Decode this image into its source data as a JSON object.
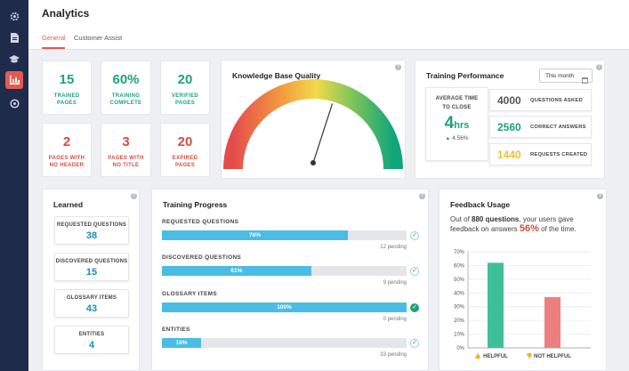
{
  "app": {
    "title": "Analytics"
  },
  "tabs": [
    {
      "label": "General"
    },
    {
      "label": "Customer Assist"
    }
  ],
  "colors": {
    "accent": "#e8594d",
    "green": "#1fa17c",
    "red": "#d64c40",
    "blue_bar": "#4bbde4",
    "sidebar": "#1f2b4a"
  },
  "sidebar": {
    "icons": [
      "settings-icon",
      "document-icon",
      "graduation-cap-icon",
      "analytics-icon",
      "chat-bubble-icon"
    ]
  },
  "stats": [
    {
      "value": "15",
      "label": "TRAINED PAGES"
    },
    {
      "value": "60%",
      "label": "TRAINING COMPLETE"
    },
    {
      "value": "20",
      "label": "VERIFIED PAGES"
    },
    {
      "value": "2",
      "label": "PAGES WITH NO HEADER"
    },
    {
      "value": "3",
      "label": "PAGES WITH NO TITLE"
    },
    {
      "value": "20",
      "label": "EXPIRED PAGES"
    }
  ],
  "kb_quality": {
    "title": "Knowledge Base Quality",
    "gauge_level": 0.6
  },
  "training_performance": {
    "title": "Training Performance",
    "period": "This month",
    "avg_time_label": "AVERAGE TIME TO CLOSE",
    "avg_time_value": "4",
    "avg_time_unit": "hrs",
    "avg_time_change": "4.56%",
    "metrics": [
      {
        "value": "4000",
        "label": "QUESTIONS ASKED",
        "color": "#555555"
      },
      {
        "value": "2560",
        "label": "CORRECT ANSWERS",
        "color": "#1fa17c"
      },
      {
        "value": "1440",
        "label": "REQUESTS CREATED",
        "color": "#e8c22d"
      }
    ]
  },
  "learned": {
    "title": "Learned",
    "items": [
      {
        "label": "REQUESTED QUESTIONS",
        "value": "38"
      },
      {
        "label": "DISCOVERED QUESTIONS",
        "value": "15"
      },
      {
        "label": "GLOSSARY ITEMS",
        "value": "43"
      },
      {
        "label": "ENTITIES",
        "value": "4"
      }
    ]
  },
  "training_progress": {
    "title": "Training Progress",
    "rows": [
      {
        "label": "REQUESTED QUESTIONS",
        "percent": 76,
        "percent_text": "76%",
        "pending": "12 pending"
      },
      {
        "label": "DISCOVERED QUESTIONS",
        "percent": 61,
        "percent_text": "61%",
        "pending": "9 pending"
      },
      {
        "label": "GLOSSARY ITEMS",
        "percent": 100,
        "percent_text": "100%",
        "pending": "0 pending"
      },
      {
        "label": "ENTITIES",
        "percent": 16,
        "percent_text": "16%",
        "pending": "33 pending"
      }
    ]
  },
  "feedback": {
    "title": "Feedback Usage",
    "text_1": "Out of ",
    "questions": "880 questions",
    "text_2": ", your users gave feedback on answers ",
    "percent": "56%",
    "text_3": " of the time."
  },
  "chart_data": {
    "type": "bar",
    "categories": [
      "HELPFUL",
      "NOT HELPFUL"
    ],
    "values": [
      62,
      37
    ],
    "colors": [
      "#3fbf98",
      "#ee7f7f"
    ],
    "yticks": [
      "0%",
      "10%",
      "20%",
      "30%",
      "40%",
      "50%",
      "60%",
      "70%"
    ],
    "ylim": [
      0,
      70
    ],
    "grid": true
  }
}
